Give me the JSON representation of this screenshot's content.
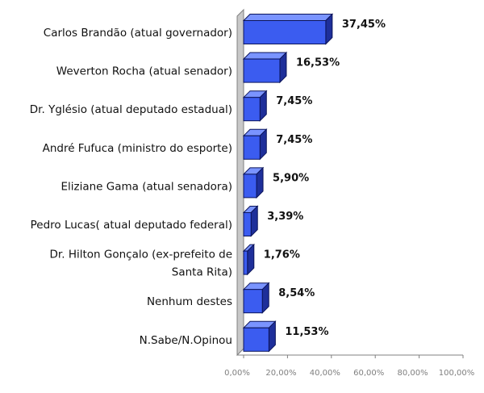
{
  "chart_data": {
    "type": "bar",
    "orientation": "horizontal",
    "categories": [
      "Carlos Brandão (atual governador)",
      "Weverton Rocha (atual senador)",
      "Dr. Yglésio (atual deputado estadual)",
      "André Fufuca (ministro do esporte)",
      "Eliziane Gama (atual senadora)",
      "Pedro Lucas( atual deputado federal)",
      "Dr. Hilton Gonçalo (ex-prefeito de Santa Rita)",
      "Nenhum destes",
      "N.Sabe/N.Opinou"
    ],
    "category_lines": [
      [
        "Carlos Brandão (atual governador)"
      ],
      [
        "Weverton Rocha (atual senador)"
      ],
      [
        "Dr. Yglésio (atual deputado estadual)"
      ],
      [
        "André Fufuca (ministro do esporte)"
      ],
      [
        "Eliziane Gama (atual senadora)"
      ],
      [
        "Pedro Lucas( atual deputado federal)"
      ],
      [
        "Dr. Hilton Gonçalo (ex-prefeito de",
        "Santa Rita)"
      ],
      [
        "Nenhum destes"
      ],
      [
        "N.Sabe/N.Opinou"
      ]
    ],
    "values": [
      37.45,
      16.53,
      7.45,
      7.45,
      5.9,
      3.39,
      1.76,
      8.54,
      11.53
    ],
    "value_labels": [
      "37,45%",
      "16,53%",
      "7,45%",
      "7,45%",
      "5,90%",
      "3,39%",
      "1,76%",
      "8,54%",
      "11,53%"
    ],
    "xlim": [
      0,
      100
    ],
    "x_ticks": [
      0,
      20,
      40,
      60,
      80,
      100
    ],
    "x_tick_labels": [
      "0,00%",
      "20,00%",
      "40,00%",
      "60,00%",
      "80,00%",
      "100,00%"
    ],
    "grid": false,
    "legend": "none",
    "title": "",
    "xlabel": "",
    "ylabel": "",
    "colors": {
      "bar_front": "#3b5cf0",
      "bar_top": "#7a94ff",
      "bar_side": "#1e2f9a",
      "bar_stroke": "#0b145a",
      "wall": "#c8c8c8",
      "axis": "#808080"
    }
  }
}
